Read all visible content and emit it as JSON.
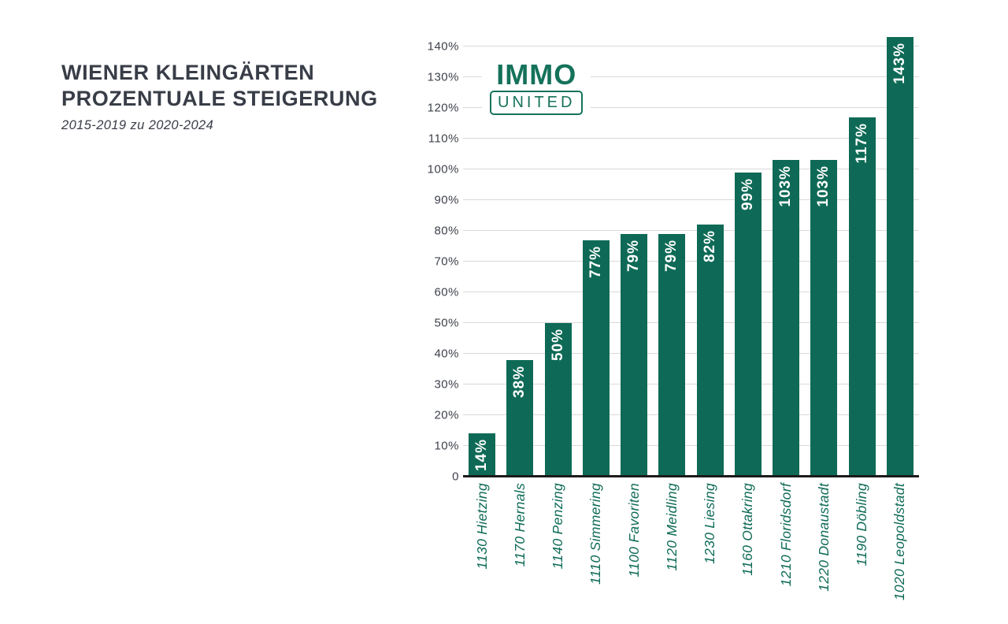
{
  "title": {
    "line1": "WIENER KLEINGÄRTEN",
    "line2": "PROZENTUALE STEIGERUNG",
    "subtitle": "2015-2019 zu 2020-2024"
  },
  "logo": {
    "immo": "IMMO",
    "united": "UNITED"
  },
  "chart_data": {
    "type": "bar",
    "title": "WIENER KLEINGÄRTEN PROZENTUALE STEIGERUNG",
    "subtitle": "2015-2019 zu 2020-2024",
    "categories": [
      "1130 Hietzing",
      "1170 Hernals",
      "1140 Penzing",
      "1110 Simmering",
      "1100 Favoriten",
      "1120 Meidling",
      "1230 Liesing",
      "1160 Ottakring",
      "1210 Floridsdorf",
      "1220 Donaustadt",
      "1190 Döbling",
      "1020 Leopoldstadt"
    ],
    "values": [
      14,
      38,
      50,
      77,
      79,
      79,
      82,
      99,
      103,
      103,
      117,
      143
    ],
    "value_labels": [
      "14%",
      "38%",
      "50%",
      "77%",
      "79%",
      "79%",
      "82%",
      "99%",
      "103%",
      "103%",
      "117%",
      "143%"
    ],
    "xlabel": "",
    "ylabel": "",
    "ylim": [
      0,
      145
    ],
    "yticks": [
      0,
      10,
      20,
      30,
      40,
      50,
      60,
      70,
      80,
      90,
      100,
      110,
      120,
      130,
      140
    ],
    "ytick_labels": [
      "0",
      "10%",
      "20%",
      "30%",
      "40%",
      "50%",
      "60%",
      "70%",
      "80%",
      "90%",
      "100%",
      "110%",
      "120%",
      "130%",
      "140%"
    ],
    "grid": true,
    "legend_position": "none",
    "bar_color": "#0e6a56",
    "value_label_color": "#ffffff",
    "category_label_color": "#0f6b57"
  },
  "colors": {
    "background": "#ffffff",
    "title_text": "#383d47",
    "axis_line": "#1b1b1b",
    "gridline": "#d9d9da",
    "ytick_text": "#3e424b",
    "brand_green": "#15725b"
  }
}
